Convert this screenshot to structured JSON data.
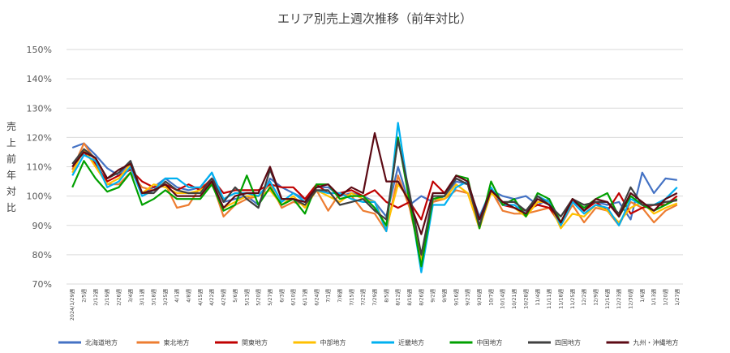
{
  "chart_data": {
    "type": "line",
    "title": "エリア別売上週次推移（前年対比）",
    "ylabel": "売上前年対比",
    "ylim": [
      70,
      150
    ],
    "yticks": [
      "150%",
      "140%",
      "130%",
      "120%",
      "110%",
      "100%",
      "90%",
      "80%",
      "70%"
    ],
    "grid": true,
    "legend": "bottom",
    "x": [
      "2024/1/29週",
      "2/5週",
      "2/12週",
      "2/19週",
      "2/26週",
      "3/4週",
      "3/11週",
      "3/18週",
      "3/25週",
      "4/1週",
      "4/8週",
      "4/15週",
      "4/22週",
      "4/29週",
      "5/6週",
      "5/13週",
      "5/20週",
      "5/27週",
      "6/3週",
      "6/10週",
      "6/17週",
      "6/24週",
      "7/1週",
      "7/8週",
      "7/15週",
      "7/22週",
      "7/29週",
      "8/5週",
      "8/12週",
      "8/19週",
      "8/26週",
      "9/2週",
      "9/9週",
      "9/16週",
      "9/23週",
      "9/30週",
      "10/7週",
      "10/14週",
      "10/21週",
      "10/28週",
      "11/4週",
      "11/11週",
      "11/18週",
      "11/25週",
      "12/2週",
      "12/9週",
      "12/16週",
      "12/23週",
      "12/30週",
      "1/6週",
      "1/13週",
      "1/20週",
      "1/27週"
    ],
    "series": [
      {
        "name": "北海道地方",
        "color": "#4472c4",
        "values": [
          116.5,
          118,
          114,
          109.5,
          107,
          112,
          101,
          103,
          106,
          103,
          102,
          103,
          108,
          98,
          99,
          100,
          97,
          106,
          103,
          101,
          99,
          103,
          103,
          100,
          101,
          100,
          98,
          93,
          110,
          97,
          100,
          98,
          100,
          105,
          104,
          93,
          102,
          100,
          99,
          100,
          97,
          99,
          91,
          98,
          96,
          98,
          97,
          98,
          92,
          108,
          101,
          106,
          105.5
        ]
      },
      {
        "name": "東北地方",
        "color": "#ed7d31",
        "values": [
          109,
          118,
          112,
          104,
          104,
          108,
          103,
          102,
          104,
          96,
          97,
          103,
          105,
          93,
          97,
          99,
          100,
          104,
          96,
          98,
          97,
          102,
          95,
          101,
          100,
          95,
          94,
          88,
          107,
          96,
          78,
          98,
          99,
          102,
          101,
          89,
          102,
          95,
          94,
          94,
          95,
          96,
          90,
          97,
          91,
          96,
          95,
          90,
          98,
          96,
          91,
          95,
          97
        ]
      },
      {
        "name": "関東地方",
        "color": "#c00000",
        "values": [
          110,
          115,
          111,
          105,
          107,
          109,
          105,
          103,
          104,
          102,
          104,
          102,
          106,
          101,
          102,
          102,
          102,
          104,
          103,
          103,
          99,
          104,
          101,
          101,
          102,
          100,
          102,
          98,
          96,
          98,
          92,
          105,
          101,
          106,
          104,
          90,
          102,
          97,
          96,
          95,
          97,
          96,
          91,
          99,
          95,
          98,
          95,
          101,
          94,
          96,
          97,
          97,
          100
        ]
      },
      {
        "name": "中部地方",
        "color": "#ffc000",
        "values": [
          108,
          116,
          110,
          104,
          106,
          111,
          101,
          104,
          103,
          101,
          101,
          102,
          104,
          96,
          98,
          100,
          100,
          102,
          97,
          100,
          96,
          102,
          100,
          98,
          101,
          99,
          98,
          89,
          104,
          99,
          77,
          99,
          99,
          104,
          101,
          89,
          101,
          98,
          96,
          93,
          98,
          98,
          89,
          94,
          93,
          97,
          95,
          91,
          96,
          98,
          94,
          96,
          97.5
        ]
      },
      {
        "name": "近畿地方",
        "color": "#00b0f0",
        "values": [
          107,
          114,
          112,
          103,
          105,
          110,
          100,
          102,
          106,
          106,
          103,
          103,
          108,
          99,
          101,
          101,
          100,
          105,
          98,
          101,
          98,
          102,
          101,
          101,
          99,
          98,
          98,
          88,
          125,
          99,
          74,
          97,
          97,
          103,
          105,
          92,
          103,
          97,
          97,
          94,
          100,
          98,
          90,
          98,
          94,
          97,
          96,
          90,
          99,
          97,
          97,
          99,
          103
        ]
      },
      {
        "name": "中国地方",
        "color": "#00a000",
        "values": [
          103,
          112,
          106,
          101.5,
          103,
          108,
          97,
          99,
          102,
          99,
          99,
          99,
          104,
          95,
          97,
          107,
          97,
          103,
          97,
          99,
          94,
          104,
          104,
          99,
          100,
          100,
          96,
          90,
          120,
          98,
          76,
          99,
          100,
          107,
          106,
          89,
          105,
          97,
          99,
          93,
          101,
          99,
          91,
          99,
          96,
          99,
          101,
          93,
          100,
          97,
          95,
          97,
          99
        ]
      },
      {
        "name": "四国地方",
        "color": "#404040",
        "values": [
          111,
          116,
          113,
          106,
          108,
          112,
          101,
          101,
          105,
          102,
          101,
          101,
          106,
          98,
          103,
          99,
          96,
          109,
          99,
          99,
          97,
          102,
          102,
          97,
          98,
          99,
          95,
          92,
          119,
          101,
          80,
          100,
          100,
          106,
          104,
          90,
          102,
          98,
          98,
          95,
          100,
          97,
          93,
          99,
          97,
          98,
          98,
          94,
          103,
          97,
          97,
          98,
          98.5
        ]
      },
      {
        "name": "九州・沖縄地方",
        "color": "#5c0a14",
        "values": [
          110,
          115,
          113,
          106,
          109,
          111,
          101,
          102,
          104,
          100,
          100,
          100,
          105,
          96,
          100,
          101,
          101,
          110,
          99,
          99,
          98,
          103,
          104,
          100,
          103,
          101,
          121.5,
          105,
          105,
          98,
          87,
          101,
          101,
          107,
          105,
          92,
          102,
          98,
          96,
          94,
          99,
          97,
          91,
          99,
          95,
          99,
          98,
          93,
          101,
          98,
          95,
          99,
          101
        ]
      }
    ]
  }
}
